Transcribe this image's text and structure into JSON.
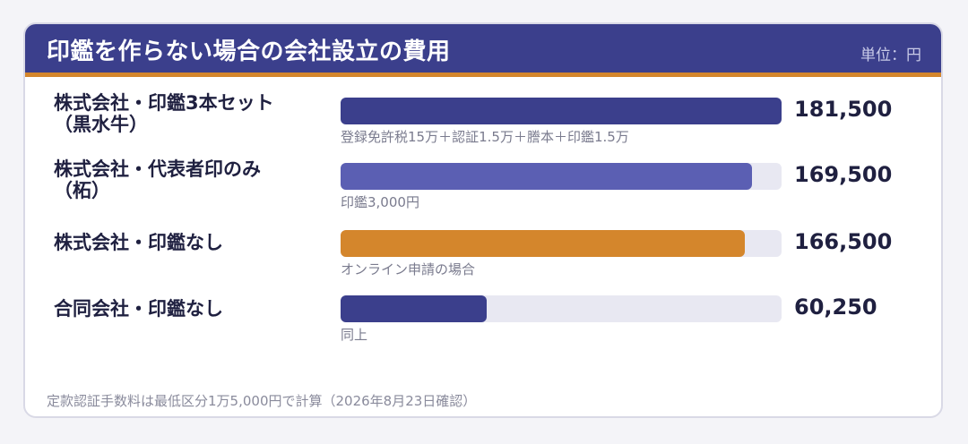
{
  "title": "印鑑を作らない場合の会社設立の費用",
  "unit": "単位：円",
  "footnote": "定款認証手数料は最低区分1万5,000円で計算（2026年8月23日確認）",
  "chart_data": {
    "type": "bar",
    "orientation": "horizontal",
    "title": "印鑑を作らない場合の会社設立の費用",
    "unit": "単位：円",
    "categories": [
      "株式会社・印鑑3本セット（黒水牛）",
      "株式会社・代表者印のみ（柘）",
      "株式会社・印鑑なし",
      "合同会社・印鑑なし"
    ],
    "values": [
      181500,
      169500,
      166500,
      60250
    ],
    "xlim": [
      0,
      181500
    ],
    "grid": false,
    "legend": "none",
    "rows": [
      {
        "label_line1": "株式会社・印鑑3本セット",
        "label_line2": "（黒水牛）",
        "value": 181500,
        "value_label": "181,500",
        "note": "登録免許税15万＋認証1.5万＋謄本＋印鑑1.5万",
        "color": "#3b3f8c"
      },
      {
        "label_line1": "株式会社・代表者印のみ",
        "label_line2": "（柘）",
        "value": 169500,
        "value_label": "169,500",
        "note": "印鑑3,000円",
        "color": "#5b5fb3"
      },
      {
        "label_line1": "株式会社・印鑑なし",
        "label_line2": "",
        "value": 166500,
        "value_label": "166,500",
        "note": "オンライン申請の場合",
        "color": "#d4862c"
      },
      {
        "label_line1": "合同会社・印鑑なし",
        "label_line2": "",
        "value": 60250,
        "value_label": "60,250",
        "note": "同上",
        "color": "#3b3f8c"
      }
    ]
  }
}
